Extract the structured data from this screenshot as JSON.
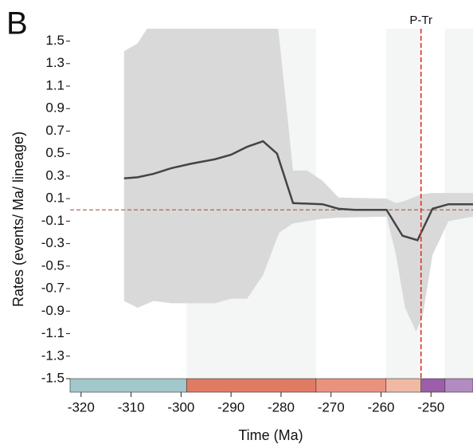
{
  "chart_data": {
    "type": "line",
    "panel_label": "B",
    "xlabel": "Time (Ma)",
    "ylabel": "Rates (events/ Ma/ lineage)",
    "xlim": [
      -322.2,
      -241.6
    ],
    "ylim": [
      -1.5,
      1.61
    ],
    "xticks": [
      -320,
      -310,
      -300,
      -290,
      -280,
      -270,
      -260,
      -250
    ],
    "yticks": [
      1.5,
      1.3,
      1.1,
      0.9,
      0.7,
      0.5,
      0.3,
      0.1,
      -0.1,
      -0.3,
      -0.5,
      -0.7,
      -0.9,
      -1.1,
      -1.3,
      -1.5
    ],
    "x": [
      -311.4,
      -308.7,
      -305.5,
      -302,
      -298,
      -293.2,
      -290,
      -286.8,
      -283.6,
      -280.8,
      -277.6,
      -271.7,
      -268.5,
      -265.3,
      -258.9,
      -255.7,
      -252.7,
      -249.7,
      -246.5,
      -241.6
    ],
    "values": [
      0.28,
      0.29,
      0.32,
      0.37,
      0.41,
      0.45,
      0.49,
      0.56,
      0.61,
      0.5,
      0.06,
      0.05,
      0.01,
      0.0,
      0.0,
      -0.23,
      -0.27,
      0.01,
      0.05,
      0.05
    ],
    "color": "#444444",
    "band": {
      "color": "#d9d9d9",
      "x": [
        -311.4,
        -308.7,
        -305.5,
        -302,
        -293.2,
        -290,
        -286.8,
        -283.6,
        -280.8,
        -280.3,
        -277.6,
        -274.8,
        -271.7,
        -268.5,
        -258.9,
        -257,
        -255.2,
        -253,
        -251.7,
        -249.7,
        -246.5,
        -241.6
      ],
      "upper": [
        1.41,
        1.48,
        1.7,
        1.7,
        1.7,
        1.7,
        1.7,
        1.7,
        1.7,
        1.5,
        0.35,
        0.35,
        0.26,
        0.11,
        0.1,
        0.06,
        0.08,
        0.12,
        0.14,
        0.15,
        0.15,
        0.15
      ],
      "lower": [
        -0.81,
        -0.87,
        -0.81,
        -0.83,
        -0.83,
        -0.79,
        -0.79,
        -0.58,
        -0.25,
        -0.2,
        -0.12,
        -0.1,
        -0.08,
        -0.07,
        -0.06,
        -0.4,
        -0.87,
        -1.08,
        -0.95,
        -0.4,
        -0.1,
        -0.06
      ]
    },
    "stages": [
      {
        "start": -322.2,
        "end": -298.9,
        "color": "#a2c8cc",
        "shade": false
      },
      {
        "start": -298.9,
        "end": -273,
        "color": "#e07b63",
        "shade": true
      },
      {
        "start": -273,
        "end": -259,
        "color": "#ea927d",
        "shade": false
      },
      {
        "start": -259,
        "end": -252,
        "color": "#f1b9a4",
        "shade": true
      },
      {
        "start": -252,
        "end": -247.2,
        "color": "#9c5ea8",
        "shade": false
      },
      {
        "start": -247.2,
        "end": -241.6,
        "color": "#b38ac1",
        "shade": true
      }
    ],
    "shade_color": "#f3f6f5",
    "hline": {
      "value": 0,
      "color": "#a0493a"
    },
    "vline": {
      "value": -252,
      "label": "P-Tr",
      "color": "#e0302a"
    }
  }
}
